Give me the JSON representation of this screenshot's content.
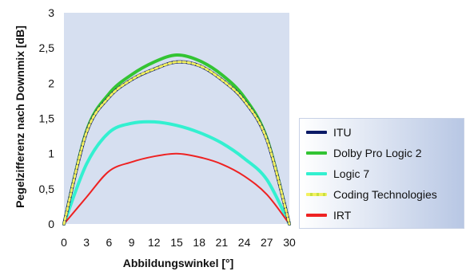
{
  "chart_data": {
    "type": "line",
    "xlabel": "Abbildungswinkel [°]",
    "ylabel": "Pegelzifferenz nach  Downmix [dB]",
    "xlim": [
      0,
      30
    ],
    "ylim": [
      0,
      3
    ],
    "xticks": [
      "0",
      "3",
      "6",
      "9",
      "12",
      "15",
      "18",
      "21",
      "24",
      "27",
      "30"
    ],
    "yticks": [
      "0",
      "0,5",
      "1",
      "1,5",
      "2",
      "2,5",
      "3"
    ],
    "x": [
      0,
      3,
      6,
      9,
      12,
      15,
      18,
      21,
      24,
      27,
      30
    ],
    "grid": false,
    "legend_position": "right",
    "plot_background": "#d6dff0",
    "series": [
      {
        "name": "ITU",
        "color": "#0a1a66",
        "dashed": false,
        "values": [
          0.0,
          1.3,
          1.8,
          2.05,
          2.2,
          2.3,
          2.25,
          2.05,
          1.75,
          1.2,
          0.0
        ]
      },
      {
        "name": "Dolby Pro Logic 2",
        "color": "#33c433",
        "dashed": false,
        "values": [
          0.0,
          1.32,
          1.85,
          2.12,
          2.3,
          2.4,
          2.32,
          2.12,
          1.8,
          1.22,
          0.0
        ]
      },
      {
        "name": "Logic 7",
        "color": "#33f0d0",
        "dashed": false,
        "values": [
          0.0,
          0.85,
          1.3,
          1.43,
          1.45,
          1.4,
          1.3,
          1.15,
          0.93,
          0.63,
          0.0
        ]
      },
      {
        "name": "Coding Technologies",
        "color": "#f2f060",
        "dashed": true,
        "values": [
          0.0,
          1.3,
          1.8,
          2.05,
          2.2,
          2.3,
          2.25,
          2.05,
          1.75,
          1.2,
          0.0
        ]
      },
      {
        "name": "IRT",
        "color": "#ee2222",
        "dashed": false,
        "values": [
          0.0,
          0.38,
          0.75,
          0.88,
          0.96,
          1.0,
          0.95,
          0.85,
          0.68,
          0.42,
          0.0
        ]
      }
    ]
  }
}
